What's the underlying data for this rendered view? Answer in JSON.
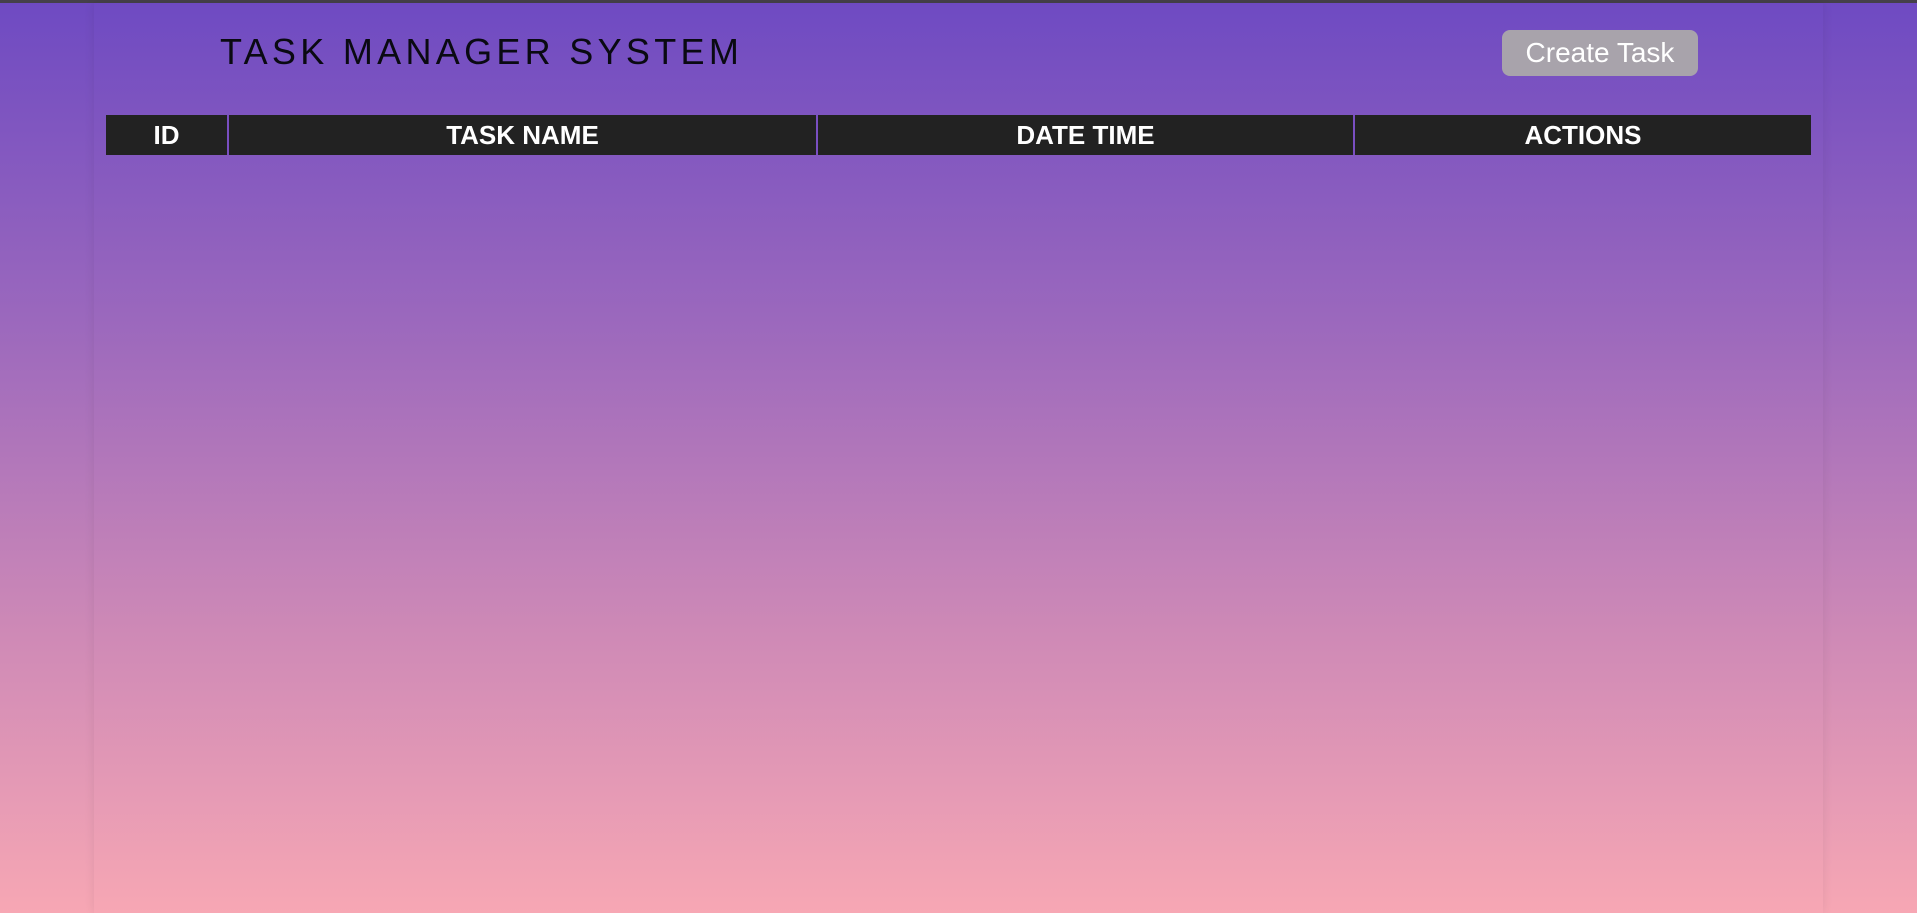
{
  "header": {
    "title": "TASK MANAGER SYSTEM",
    "create_button_label": "Create Task"
  },
  "table": {
    "columns": [
      "ID",
      "TASK NAME",
      "DATE TIME",
      "ACTIONS"
    ],
    "rows": []
  },
  "colors": {
    "table_header_bg": "#222222",
    "button_bg": "#a8a3ab",
    "gradient_top": "#6e4ac2",
    "gradient_bottom": "#f7a7b4"
  }
}
